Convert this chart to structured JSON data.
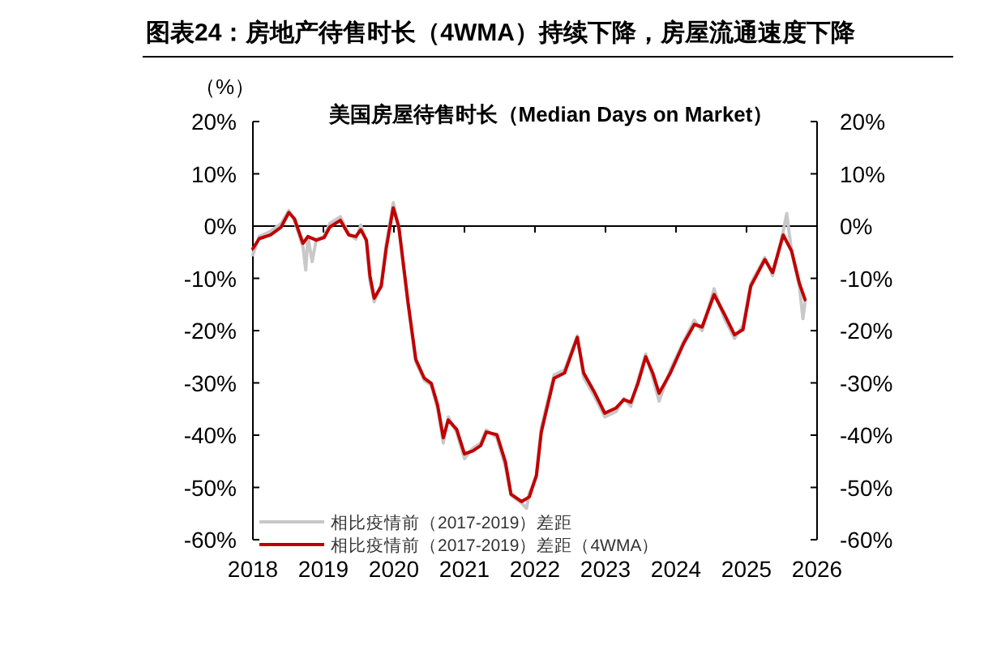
{
  "chart_data": {
    "type": "line",
    "title": "图表24：房地产待售时长（4WMA）持续下降，房屋流通速度下降",
    "subtitle": "美国房屋待售时长（Median Days on Market）",
    "ylabel": "（%）",
    "xlim": [
      2018,
      2026
    ],
    "xticks": [
      2018,
      2019,
      2020,
      2021,
      2022,
      2023,
      2024,
      2025,
      2026
    ],
    "ylim": [
      -60,
      20
    ],
    "yticks": [
      {
        "value": -60,
        "label": "-60%"
      },
      {
        "value": -50,
        "label": "-50%"
      },
      {
        "value": -40,
        "label": "-40%"
      },
      {
        "value": -30,
        "label": "-30%"
      },
      {
        "value": -20,
        "label": "-20%"
      },
      {
        "value": -10,
        "label": "-10%"
      },
      {
        "value": 0,
        "label": "0%"
      },
      {
        "value": 10,
        "label": "10%"
      },
      {
        "value": 20,
        "label": "20%"
      }
    ],
    "y2lim": [
      -60,
      20
    ],
    "y2ticks": [
      {
        "value": -60,
        "label": "-60%"
      },
      {
        "value": -50,
        "label": "-50%"
      },
      {
        "value": -40,
        "label": "-40%"
      },
      {
        "value": -30,
        "label": "-30%"
      },
      {
        "value": -20,
        "label": "-20%"
      },
      {
        "value": -10,
        "label": "-10%"
      },
      {
        "value": 0,
        "label": "0%"
      },
      {
        "value": 10,
        "label": "10%"
      },
      {
        "value": 20,
        "label": "20%"
      }
    ],
    "ref_lines": [
      {
        "axis": "y",
        "value": 0,
        "color": "#000000",
        "line_style": "solid"
      }
    ],
    "grid": false,
    "legend": "bottom left",
    "marker": "none",
    "line_style": "solid",
    "series": [
      {
        "name": "相比疫情前（2017-2019）差距",
        "color": "#c8c8c8",
        "x": [
          2018.0,
          2018.09,
          2018.25,
          2018.4,
          2018.51,
          2018.59,
          2018.71,
          2018.75,
          2018.78,
          2018.84,
          2018.9,
          2019.01,
          2019.09,
          2019.24,
          2019.36,
          2019.46,
          2019.53,
          2019.61,
          2019.66,
          2019.72,
          2019.82,
          2019.89,
          2019.99,
          2020.07,
          2020.2,
          2020.31,
          2020.43,
          2020.53,
          2020.62,
          2020.7,
          2020.77,
          2020.89,
          2021.0,
          2021.12,
          2021.23,
          2021.31,
          2021.46,
          2021.58,
          2021.66,
          2021.81,
          2021.88,
          2021.92,
          2022.02,
          2022.09,
          2022.27,
          2022.42,
          2022.6,
          2022.69,
          2022.84,
          2022.99,
          2023.15,
          2023.26,
          2023.36,
          2023.46,
          2023.57,
          2023.67,
          2023.76,
          2023.92,
          2024.11,
          2024.26,
          2024.37,
          2024.54,
          2024.68,
          2024.83,
          2024.95,
          2025.06,
          2025.26,
          2025.37,
          2025.52,
          2025.57,
          2025.64,
          2025.75,
          2025.8,
          2025.83
        ],
        "values": [
          -5.5,
          -2.0,
          -1.0,
          0.5,
          3.0,
          1.0,
          -4.0,
          -8.4,
          -2.0,
          -6.8,
          -2.5,
          -2.0,
          0.5,
          1.8,
          -1.5,
          -2.5,
          0.2,
          -3.0,
          -10.5,
          -14.5,
          -11.0,
          -3.5,
          4.5,
          -0.5,
          -15.0,
          -26.0,
          -29.5,
          -30.5,
          -35.0,
          -41.5,
          -36.5,
          -39.5,
          -44.5,
          -42.5,
          -41.5,
          -39.0,
          -40.5,
          -46.0,
          -51.5,
          -53.0,
          -54.0,
          -51.0,
          -48.0,
          -38.5,
          -28.5,
          -27.5,
          -21.0,
          -29.0,
          -32.5,
          -36.5,
          -35.5,
          -33.0,
          -34.5,
          -29.5,
          -24.5,
          -29.0,
          -33.5,
          -27.5,
          -22.0,
          -18.0,
          -20.0,
          -12.0,
          -17.5,
          -21.5,
          -19.0,
          -11.0,
          -6.0,
          -9.5,
          -1.0,
          2.4,
          -5.0,
          -11.5,
          -17.7,
          -14.5
        ]
      },
      {
        "name": "相比疫情前（2017-2019）差距（4WMA）",
        "color": "#c00000",
        "x": [
          2018.0,
          2018.09,
          2018.25,
          2018.4,
          2018.51,
          2018.59,
          2018.71,
          2018.78,
          2018.9,
          2019.01,
          2019.09,
          2019.24,
          2019.36,
          2019.46,
          2019.53,
          2019.61,
          2019.66,
          2019.72,
          2019.82,
          2019.89,
          2019.99,
          2020.07,
          2020.2,
          2020.31,
          2020.43,
          2020.53,
          2020.62,
          2020.7,
          2020.77,
          2020.89,
          2021.0,
          2021.12,
          2021.23,
          2021.31,
          2021.46,
          2021.58,
          2021.66,
          2021.81,
          2021.92,
          2022.02,
          2022.09,
          2022.27,
          2022.42,
          2022.6,
          2022.69,
          2022.84,
          2022.99,
          2023.15,
          2023.26,
          2023.36,
          2023.46,
          2023.57,
          2023.67,
          2023.76,
          2023.92,
          2024.11,
          2024.26,
          2024.37,
          2024.54,
          2024.68,
          2024.83,
          2024.95,
          2025.06,
          2025.26,
          2025.37,
          2025.52,
          2025.64,
          2025.75,
          2025.83
        ],
        "values": [
          -4.3,
          -2.4,
          -1.7,
          -0.2,
          2.6,
          1.4,
          -3.3,
          -2.0,
          -2.7,
          -2.2,
          -0.2,
          1.1,
          -1.7,
          -2.0,
          -0.7,
          -2.7,
          -9.5,
          -13.8,
          -11.5,
          -4.3,
          3.5,
          -0.2,
          -14.6,
          -25.5,
          -29.1,
          -30.1,
          -34.3,
          -40.5,
          -37.1,
          -38.9,
          -43.6,
          -43.0,
          -42.0,
          -39.4,
          -39.9,
          -45.1,
          -51.3,
          -52.7,
          -51.8,
          -47.7,
          -39.4,
          -29.1,
          -28.1,
          -21.3,
          -28.1,
          -31.7,
          -35.8,
          -34.8,
          -33.2,
          -33.7,
          -30.1,
          -25.0,
          -28.1,
          -32.0,
          -28.1,
          -22.4,
          -18.8,
          -19.3,
          -13.1,
          -16.7,
          -20.8,
          -19.8,
          -11.5,
          -6.4,
          -8.9,
          -1.7,
          -4.8,
          -11.0,
          -14.1
        ]
      }
    ]
  }
}
